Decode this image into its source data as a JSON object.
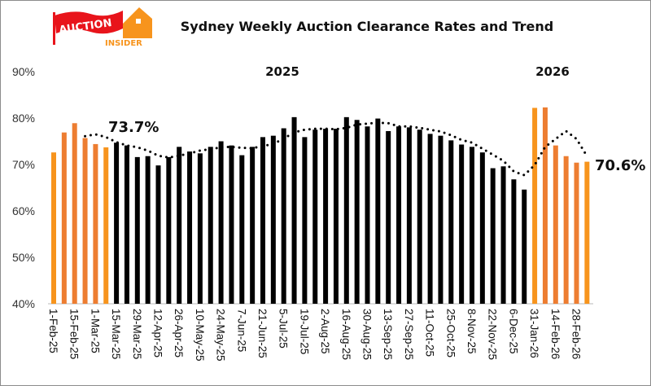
{
  "logo": {
    "text_top": "AUCTION",
    "text_bottom": "INSIDER"
  },
  "chart_data": {
    "type": "bar",
    "title": "Sydney Weekly Auction Clearance Rates and Trend",
    "xlabel": "",
    "ylabel": "",
    "ylim": [
      40,
      90
    ],
    "yticks": [
      "40%",
      "50%",
      "60%",
      "70%",
      "80%",
      "90%"
    ],
    "grid": false,
    "categories": [
      "1-Feb-25",
      "8-Feb-25",
      "15-Feb-25",
      "22-Feb-25",
      "1-Mar-25",
      "8-Mar-25",
      "15-Mar-25",
      "22-Mar-25",
      "29-Mar-25",
      "5-Apr-25",
      "12-Apr-25",
      "19-Apr-25",
      "26-Apr-25",
      "3-May-25",
      "10-May-25",
      "17-May-25",
      "24-May-25",
      "31-May-25",
      "7-Jun-25",
      "14-Jun-25",
      "21-Jun-25",
      "28-Jun-25",
      "5-Jul-25",
      "12-Jul-25",
      "19-Jul-25",
      "26-Jul-25",
      "2-Aug-25",
      "9-Aug-25",
      "16-Aug-25",
      "23-Aug-25",
      "30-Aug-25",
      "6-Sep-25",
      "13-Sep-25",
      "20-Sep-25",
      "27-Sep-25",
      "4-Oct-25",
      "11-Oct-25",
      "18-Oct-25",
      "25-Oct-25",
      "1-Nov-25",
      "8-Nov-25",
      "15-Nov-25",
      "22-Nov-25",
      "29-Nov-25",
      "6-Dec-25",
      "13-Dec-25",
      "31-Jan-26",
      "7-Feb-26",
      "14-Feb-26",
      "21-Feb-26",
      "28-Feb-26",
      "7-Mar-26"
    ],
    "tick_labels": [
      "1-Feb-25",
      "15-Feb-25",
      "1-Mar-25",
      "15-Mar-25",
      "29-Mar-25",
      "12-Apr-25",
      "26-Apr-25",
      "10-May-25",
      "24-May-25",
      "7-Jun-25",
      "21-Jun-25",
      "5-Jul-25",
      "19-Jul-25",
      "2-Aug-25",
      "16-Aug-25",
      "30-Aug-25",
      "13-Sep-25",
      "27-Sep-25",
      "11-Oct-25",
      "25-Oct-25",
      "8-Nov-25",
      "22-Nov-25",
      "6-Dec-25",
      "31-Jan-26",
      "14-Feb-26",
      "28-Feb-26"
    ],
    "series": [
      {
        "type": "bar",
        "values": [
          72.6,
          76.9,
          78.9,
          75.7,
          74.4,
          73.7,
          74.7,
          74.1,
          71.6,
          71.8,
          69.8,
          71.6,
          73.8,
          72.8,
          72.4,
          73.8,
          75.0,
          74.1,
          72.0,
          73.8,
          75.9,
          76.2,
          77.8,
          80.2,
          75.9,
          77.5,
          77.7,
          77.7,
          80.2,
          79.6,
          78.2,
          79.9,
          77.2,
          78.2,
          78.0,
          77.5,
          76.6,
          76.2,
          75.2,
          74.3,
          73.8,
          72.6,
          69.2,
          69.6,
          66.8,
          64.6,
          82.2,
          82.3,
          74.1,
          71.8,
          70.4,
          70.6
        ],
        "colors": [
          "#F7941D",
          "#ED7D31",
          "#ED7D31",
          "#ED7D31",
          "#ED7D31",
          "#F7941D",
          "#000000",
          "#000000",
          "#000000",
          "#000000",
          "#000000",
          "#000000",
          "#000000",
          "#000000",
          "#000000",
          "#000000",
          "#000000",
          "#000000",
          "#000000",
          "#000000",
          "#000000",
          "#000000",
          "#000000",
          "#000000",
          "#000000",
          "#000000",
          "#000000",
          "#000000",
          "#000000",
          "#000000",
          "#000000",
          "#000000",
          "#000000",
          "#000000",
          "#000000",
          "#000000",
          "#000000",
          "#000000",
          "#000000",
          "#000000",
          "#000000",
          "#000000",
          "#000000",
          "#000000",
          "#000000",
          "#000000",
          "#F7941D",
          "#ED7D31",
          "#ED7D31",
          "#ED7D31",
          "#ED7D31",
          "#F7941D"
        ]
      },
      {
        "type": "line",
        "style": "dotted",
        "color": "#000000",
        "values": [
          null,
          null,
          null,
          76.1,
          76.5,
          75.9,
          74.8,
          74.1,
          73.7,
          73.0,
          71.9,
          71.5,
          71.9,
          72.4,
          73.0,
          73.3,
          73.7,
          73.8,
          73.6,
          73.5,
          74.0,
          74.4,
          75.6,
          76.9,
          77.5,
          77.7,
          77.7,
          77.6,
          77.9,
          78.6,
          78.8,
          79.0,
          78.9,
          78.2,
          78.2,
          77.9,
          77.5,
          77.1,
          76.3,
          75.3,
          74.7,
          73.4,
          72.1,
          70.8,
          68.5,
          67.7,
          69.9,
          73.8,
          75.5,
          77.2,
          75.5,
          71.8
        ]
      }
    ],
    "annotations": {
      "year_2025": "2025",
      "year_2026": "2026",
      "start_value": "73.7%",
      "end_value": "70.6%"
    }
  }
}
